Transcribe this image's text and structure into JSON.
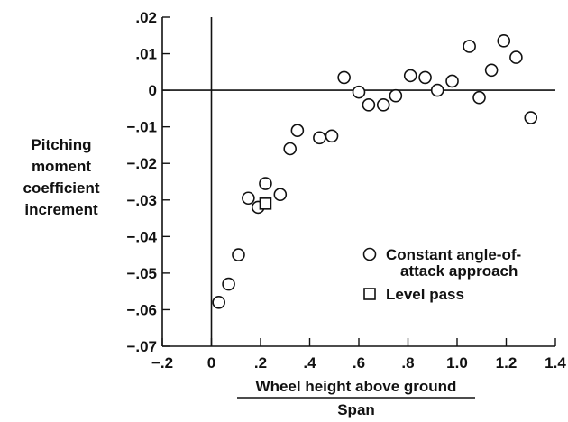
{
  "chart_data": {
    "type": "scatter",
    "ylabel_lines": [
      "Pitching",
      "moment",
      "coefficient",
      "increment"
    ],
    "xlabel_numerator": "Wheel height above ground",
    "xlabel_denominator": "Span",
    "xlim": [
      -0.2,
      1.4
    ],
    "ylim": [
      -0.07,
      0.02
    ],
    "xticks": [
      -0.2,
      0,
      0.2,
      0.4,
      0.6,
      0.8,
      1.0,
      1.2,
      1.4
    ],
    "xtick_labels": [
      "−.2",
      "0",
      ".2",
      ".4",
      ".6",
      ".8",
      "1.0",
      "1.2",
      "1.4"
    ],
    "yticks": [
      0.02,
      0.01,
      0,
      -0.01,
      -0.02,
      -0.03,
      -0.04,
      -0.05,
      -0.06,
      -0.07
    ],
    "ytick_labels": [
      ".02",
      ".01",
      "0",
      "−.01",
      "−.02",
      "−.03",
      "−.04",
      "−.05",
      "−.06",
      "−.07"
    ],
    "grid": false,
    "legend_position": "right",
    "series": [
      {
        "name": "Constant angle-of-attack approach",
        "marker": "circle",
        "legend_lines": [
          "Constant angle-of-",
          "attack approach"
        ],
        "points": [
          [
            0.03,
            -0.058
          ],
          [
            0.07,
            -0.053
          ],
          [
            0.11,
            -0.045
          ],
          [
            0.15,
            -0.0295
          ],
          [
            0.19,
            -0.032
          ],
          [
            0.22,
            -0.0255
          ],
          [
            0.28,
            -0.0285
          ],
          [
            0.32,
            -0.016
          ],
          [
            0.35,
            -0.011
          ],
          [
            0.44,
            -0.013
          ],
          [
            0.49,
            -0.0125
          ],
          [
            0.54,
            0.0035
          ],
          [
            0.6,
            -0.0005
          ],
          [
            0.64,
            -0.004
          ],
          [
            0.7,
            -0.004
          ],
          [
            0.75,
            -0.0015
          ],
          [
            0.81,
            0.004
          ],
          [
            0.87,
            0.0035
          ],
          [
            0.92,
            0.0
          ],
          [
            0.98,
            0.0025
          ],
          [
            1.05,
            0.012
          ],
          [
            1.09,
            -0.002
          ],
          [
            1.14,
            0.0055
          ],
          [
            1.19,
            0.0135
          ],
          [
            1.24,
            0.009
          ],
          [
            1.3,
            -0.0075
          ]
        ]
      },
      {
        "name": "Level pass",
        "marker": "square",
        "legend_lines": [
          "Level pass"
        ],
        "points": [
          [
            0.22,
            -0.031
          ]
        ]
      }
    ]
  }
}
